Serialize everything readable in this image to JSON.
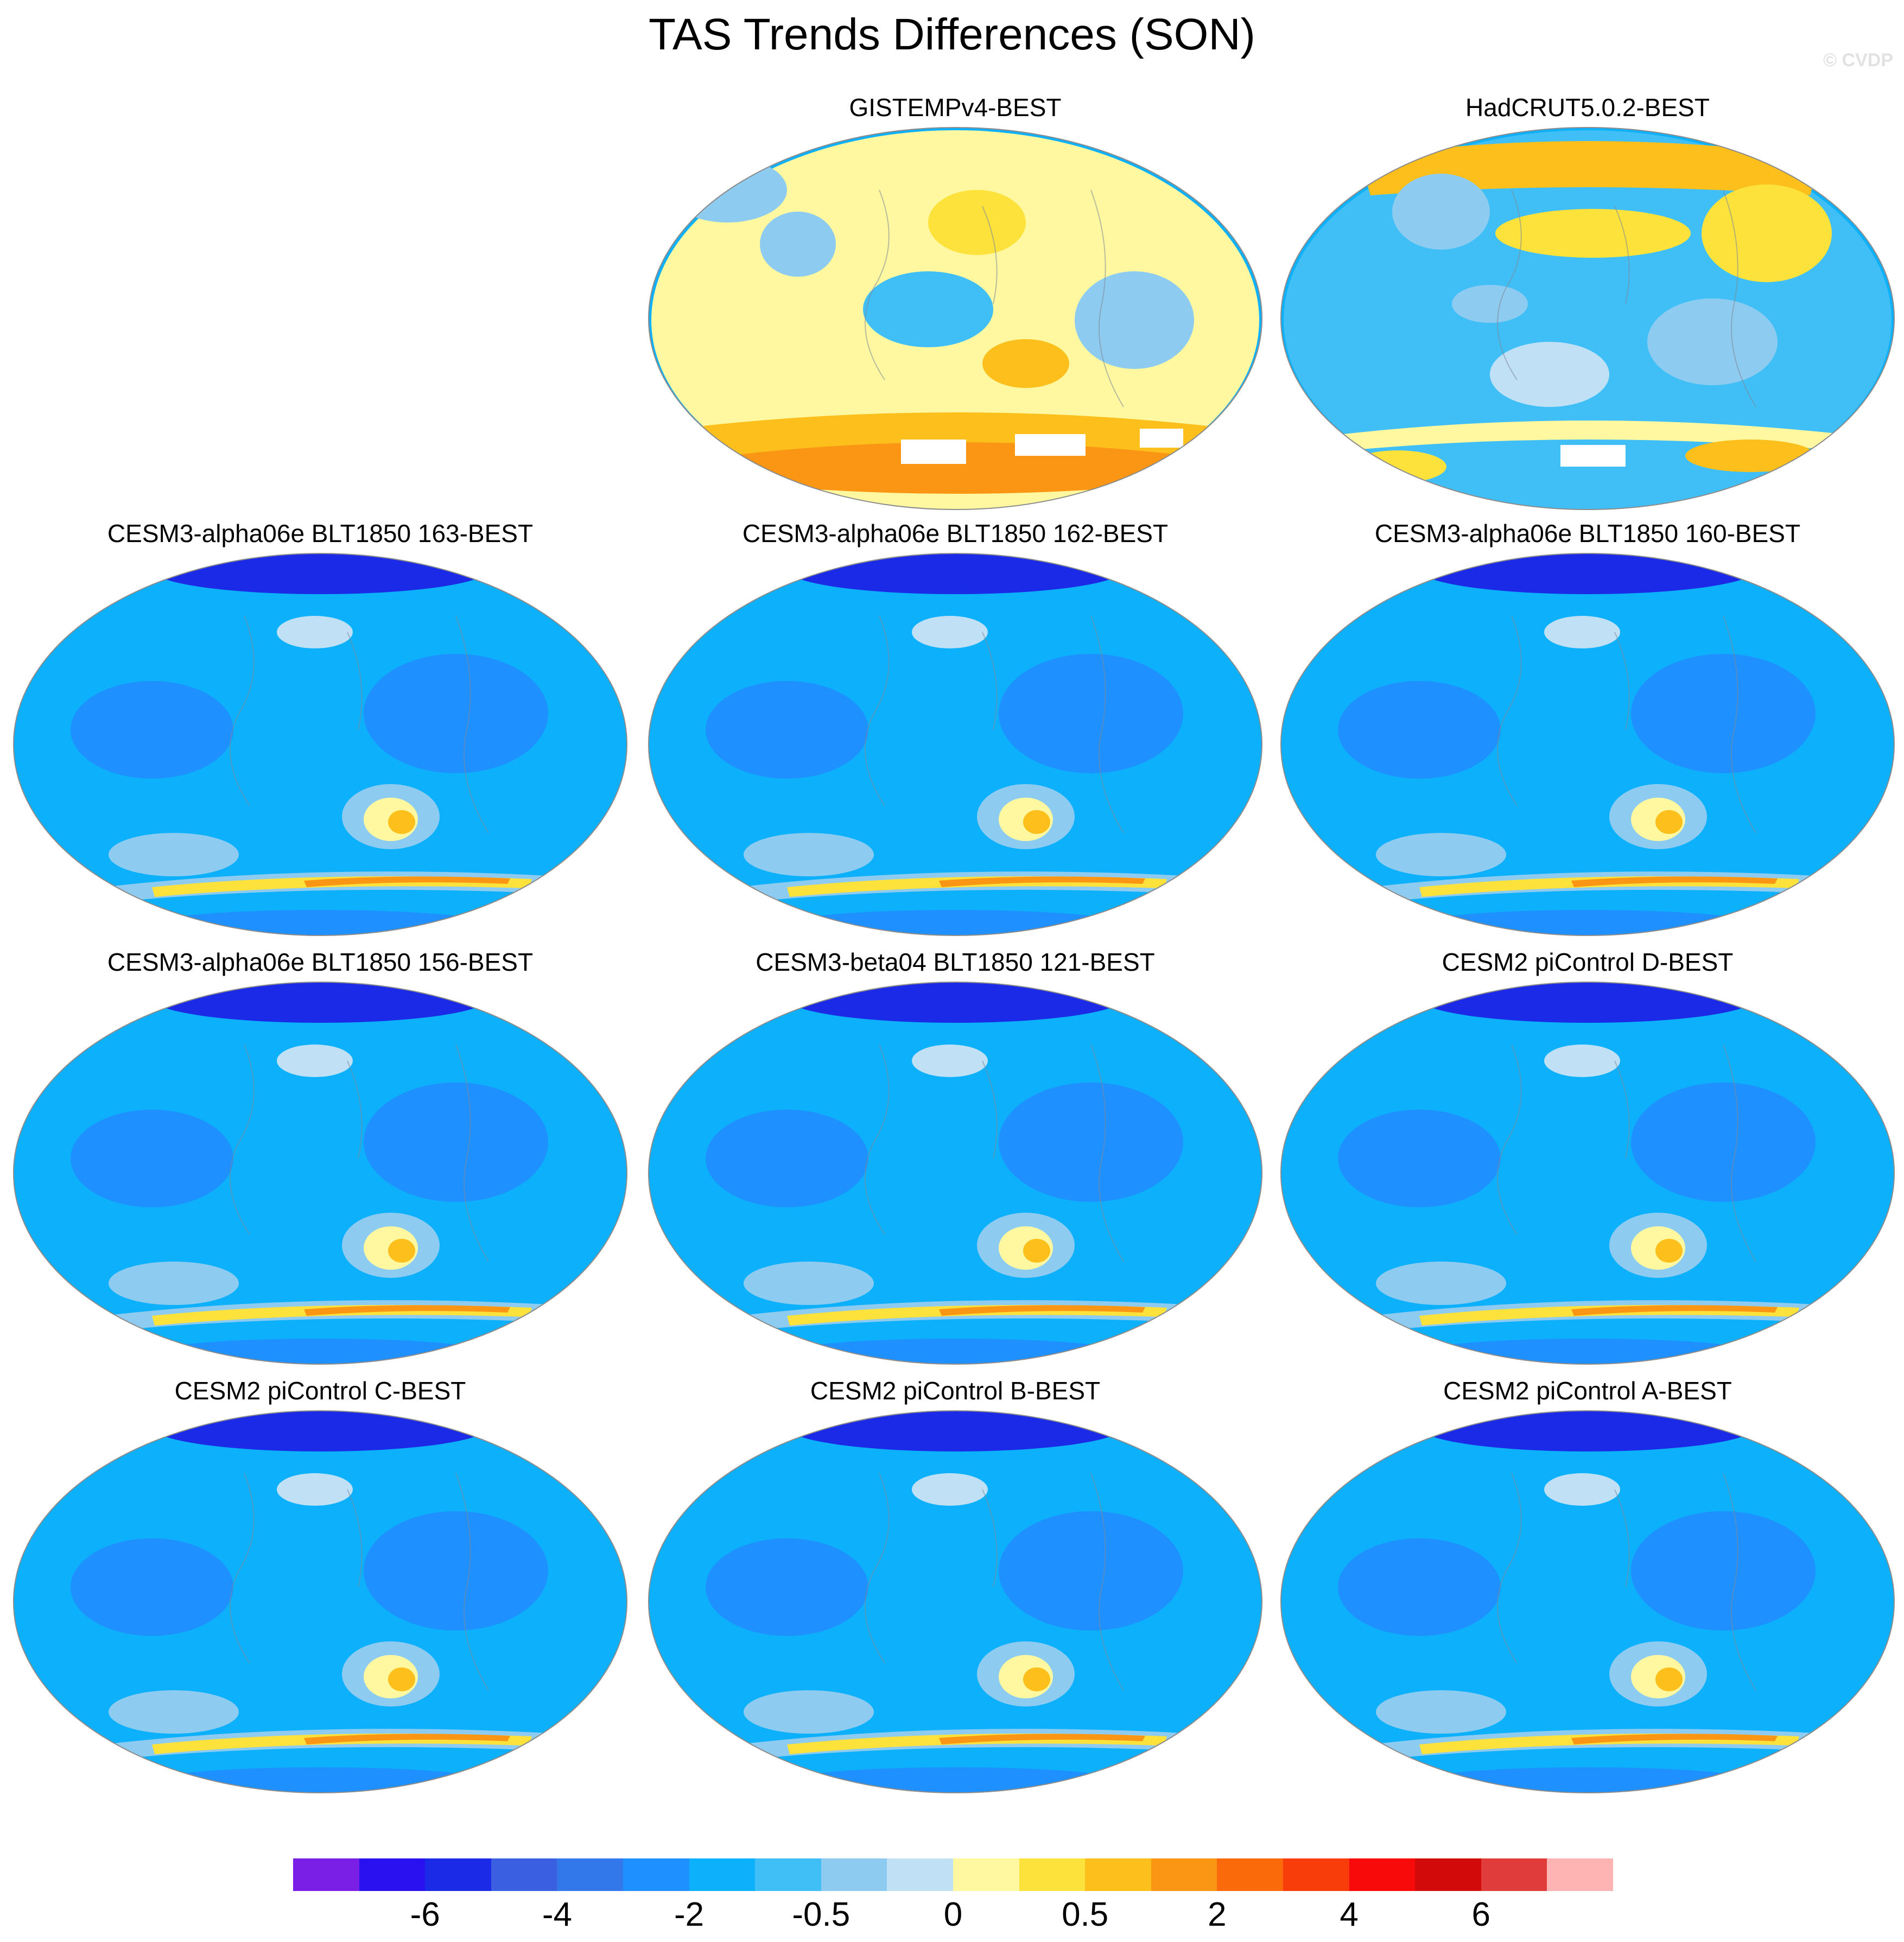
{
  "title": "TAS Trends Differences (SON)",
  "watermark": "© CVDP",
  "panels": [
    {
      "title": "GISTEMPv4-BEST",
      "pattern": "gistemp"
    },
    {
      "title": "HadCRUT5.0.2-BEST",
      "pattern": "hadcrut"
    },
    {
      "title": "CESM3-alpha06e BLT1850 163-BEST",
      "pattern": "model"
    },
    {
      "title": "CESM3-alpha06e BLT1850 162-BEST",
      "pattern": "model"
    },
    {
      "title": "CESM3-alpha06e BLT1850 160-BEST",
      "pattern": "model"
    },
    {
      "title": "CESM3-alpha06e BLT1850 156-BEST",
      "pattern": "model"
    },
    {
      "title": "CESM3-beta04 BLT1850 121-BEST",
      "pattern": "model"
    },
    {
      "title": "CESM2 piControl D-BEST",
      "pattern": "model"
    },
    {
      "title": "CESM2 piControl C-BEST",
      "pattern": "model"
    },
    {
      "title": "CESM2 piControl B-BEST",
      "pattern": "model"
    },
    {
      "title": "CESM2 piControl A-BEST",
      "pattern": "model"
    }
  ],
  "colorbar": {
    "colors": [
      "#7a1fe6",
      "#2a12f0",
      "#1a2ae6",
      "#3a5fe0",
      "#3378ea",
      "#1e90ff",
      "#0db0fa",
      "#3fbff5",
      "#8ecbf0",
      "#bfe0f5",
      "#fff8a0",
      "#fde23c",
      "#fcbf1c",
      "#fb9614",
      "#fa6a0a",
      "#f83c0a",
      "#f80a0a",
      "#d20a0a",
      "#e03c3c",
      "#ffb4b4"
    ],
    "labels": [
      "-6",
      "-4",
      "-2",
      "-0.5",
      "0",
      "0.5",
      "2",
      "4",
      "6"
    ]
  }
}
